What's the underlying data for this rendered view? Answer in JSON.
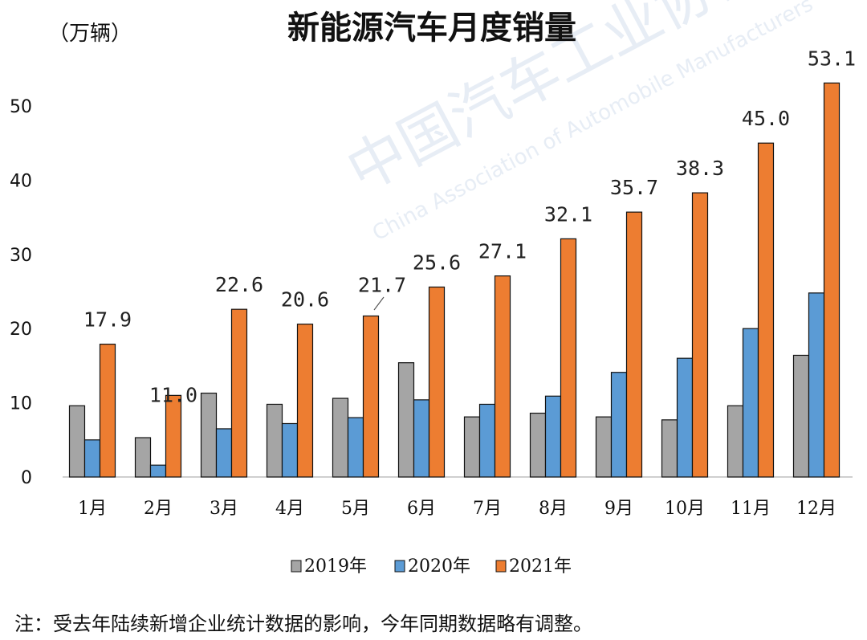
{
  "chart_data": {
    "type": "bar",
    "title": "新能源汽车月度销量",
    "unit_label": "（万辆）",
    "categories": [
      "1月",
      "2月",
      "3月",
      "4月",
      "5月",
      "6月",
      "7月",
      "8月",
      "9月",
      "10月",
      "11月",
      "12月"
    ],
    "series": [
      {
        "name": "2019年",
        "color": "#a5a5a5",
        "values": [
          9.6,
          5.3,
          11.3,
          9.8,
          10.6,
          15.4,
          8.1,
          8.6,
          8.1,
          7.7,
          9.6,
          16.4
        ]
      },
      {
        "name": "2020年",
        "color": "#5b9bd5",
        "values": [
          5.0,
          1.6,
          6.5,
          7.2,
          8.0,
          10.4,
          9.8,
          10.9,
          14.1,
          16.0,
          20.0,
          24.8
        ]
      },
      {
        "name": "2021年",
        "color": "#ed7d31",
        "values": [
          17.9,
          11.0,
          22.6,
          20.6,
          21.7,
          25.6,
          27.1,
          32.1,
          35.7,
          38.3,
          45.0,
          53.1
        ],
        "data_labels": [
          "17.9",
          "11.0",
          "22.6",
          "20.6",
          "21.7",
          "25.6",
          "27.1",
          "32.1",
          "35.7",
          "38.3",
          "45.0",
          "53.1"
        ]
      }
    ],
    "ylim": [
      0,
      55
    ],
    "yticks": [
      0,
      10,
      20,
      30,
      40,
      50
    ],
    "grid": false,
    "legend_position": "bottom"
  },
  "note": "注：受去年陆续新增企业统计数据的影响，今年同期数据略有调整。",
  "watermark": {
    "org_cn": "中国汽车工业协会",
    "org_en": "China Association of Automobile Manufacturers"
  }
}
